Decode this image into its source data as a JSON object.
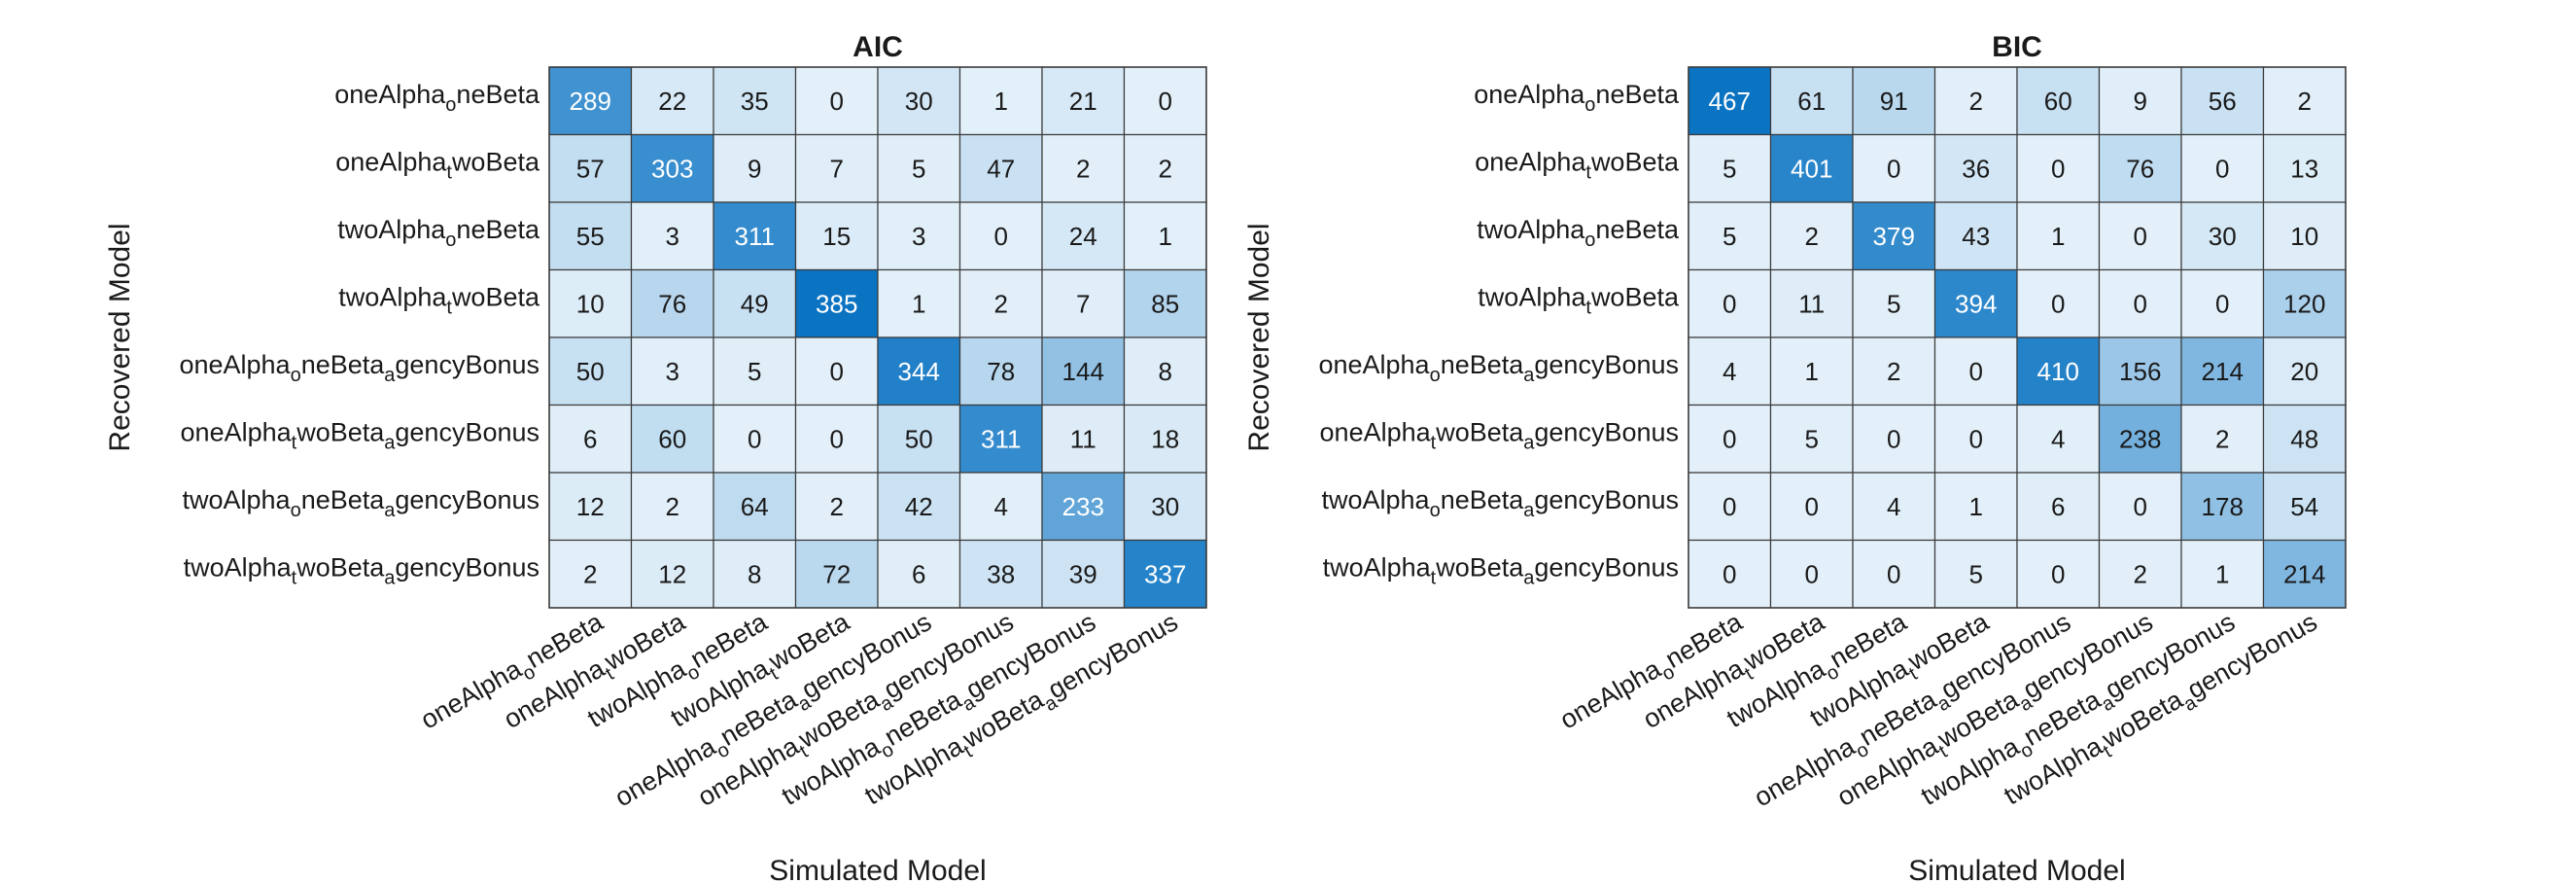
{
  "colors": {
    "cell_low": "#E3F0F9",
    "cell_high": "#0A73C2",
    "grid_line": "#3A3A3A",
    "text_dark": "#1A1A1A",
    "text_light": "#FFFFFF"
  },
  "models": [
    {
      "base": "oneAlpha",
      "sub": "o",
      "rest": "neBeta",
      "sub2": "",
      "rest2": ""
    },
    {
      "base": "oneAlpha",
      "sub": "t",
      "rest": "woBeta",
      "sub2": "",
      "rest2": ""
    },
    {
      "base": "twoAlpha",
      "sub": "o",
      "rest": "neBeta",
      "sub2": "",
      "rest2": ""
    },
    {
      "base": "twoAlpha",
      "sub": "t",
      "rest": "woBeta",
      "sub2": "",
      "rest2": ""
    },
    {
      "base": "oneAlpha",
      "sub": "o",
      "rest": "neBeta",
      "sub2": "a",
      "rest2": "gencyBonus"
    },
    {
      "base": "oneAlpha",
      "sub": "t",
      "rest": "woBeta",
      "sub2": "a",
      "rest2": "gencyBonus"
    },
    {
      "base": "twoAlpha",
      "sub": "o",
      "rest": "neBeta",
      "sub2": "a",
      "rest2": "gencyBonus"
    },
    {
      "base": "twoAlpha",
      "sub": "t",
      "rest": "woBeta",
      "sub2": "a",
      "rest2": "gencyBonus"
    }
  ],
  "chart_data": [
    {
      "type": "heatmap",
      "title": "AIC",
      "xlabel": "Simulated Model",
      "ylabel": "Recovered Model",
      "rows_are": "recovered model",
      "columns_are": "simulated model",
      "values": [
        [
          289,
          22,
          35,
          0,
          30,
          1,
          21,
          0
        ],
        [
          57,
          303,
          9,
          7,
          5,
          47,
          2,
          2
        ],
        [
          55,
          3,
          311,
          15,
          3,
          0,
          24,
          1
        ],
        [
          10,
          76,
          49,
          385,
          1,
          2,
          7,
          85
        ],
        [
          50,
          3,
          5,
          0,
          344,
          78,
          144,
          8
        ],
        [
          6,
          60,
          0,
          0,
          50,
          311,
          11,
          18
        ],
        [
          12,
          2,
          64,
          2,
          42,
          4,
          233,
          30
        ],
        [
          2,
          12,
          8,
          72,
          6,
          38,
          39,
          337
        ]
      ]
    },
    {
      "type": "heatmap",
      "title": "BIC",
      "xlabel": "Simulated Model",
      "ylabel": "Recovered Model",
      "rows_are": "recovered model",
      "columns_are": "simulated model",
      "values": [
        [
          467,
          61,
          91,
          2,
          60,
          9,
          56,
          2
        ],
        [
          5,
          401,
          0,
          36,
          0,
          76,
          0,
          13
        ],
        [
          5,
          2,
          379,
          43,
          1,
          0,
          30,
          10
        ],
        [
          0,
          11,
          5,
          394,
          0,
          0,
          0,
          120
        ],
        [
          4,
          1,
          2,
          0,
          410,
          156,
          214,
          20
        ],
        [
          0,
          5,
          0,
          0,
          4,
          238,
          2,
          48
        ],
        [
          0,
          0,
          4,
          1,
          6,
          0,
          178,
          54
        ],
        [
          0,
          0,
          0,
          5,
          0,
          2,
          1,
          214
        ]
      ]
    }
  ]
}
